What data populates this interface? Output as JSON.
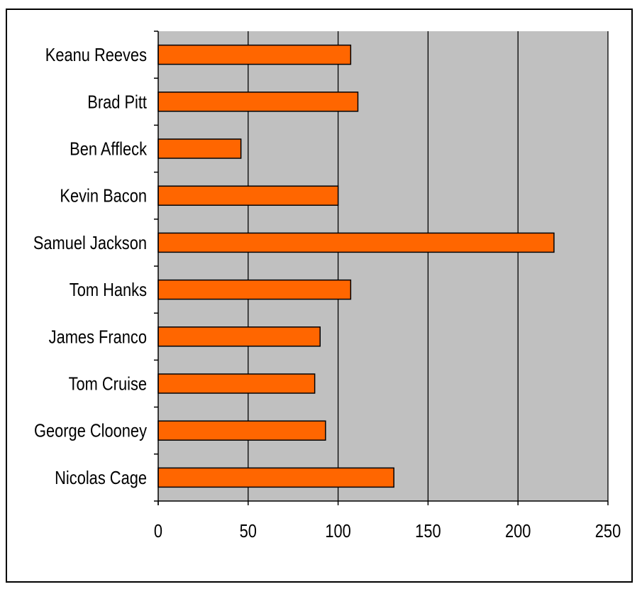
{
  "chart_data": {
    "type": "bar",
    "orientation": "horizontal",
    "title": "",
    "xlabel": "",
    "ylabel": "",
    "categories": [
      "Keanu Reeves",
      "Brad Pitt",
      "Ben Affleck",
      "Kevin Bacon",
      "Samuel Jackson",
      "Tom Hanks",
      "James Franco",
      "Tom Cruise",
      "George Clooney",
      "Nicolas Cage"
    ],
    "values": [
      107,
      111,
      46,
      100,
      220,
      107,
      90,
      87,
      93,
      131
    ],
    "xlim": [
      0,
      250
    ],
    "xticks": [
      0,
      50,
      100,
      150,
      200,
      250
    ],
    "grid": "vertical",
    "legend": "none",
    "colors": {
      "bar_fill": "#FF6600",
      "bar_stroke": "#000000",
      "plot_background": "#C0C0C0",
      "gridline": "#000000"
    }
  }
}
